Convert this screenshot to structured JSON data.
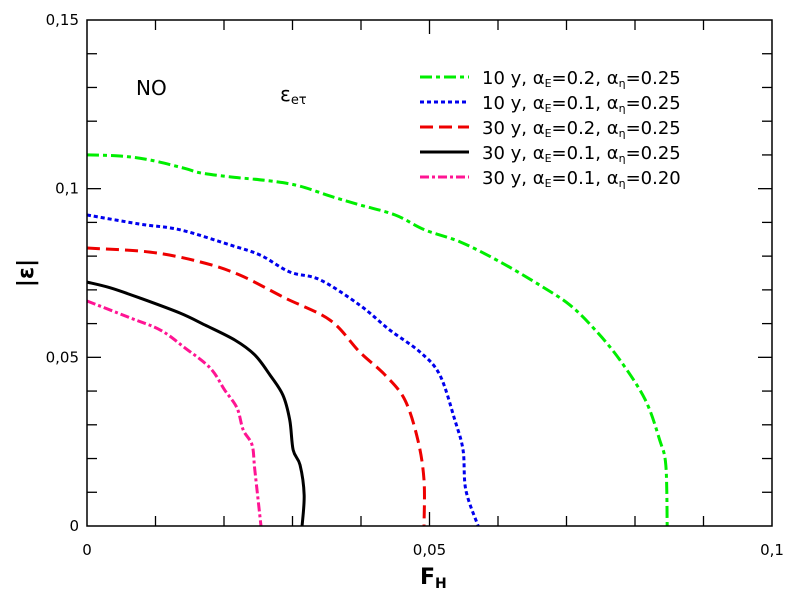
{
  "chart_data": {
    "type": "line",
    "xlabel": {
      "main": "F",
      "sub": "H"
    },
    "ylabel": "|ε|",
    "xlim": [
      0,
      0.1
    ],
    "ylim": [
      0,
      0.15
    ],
    "x_ticks": [
      {
        "value": 0,
        "label": "0"
      },
      {
        "value": 0.05,
        "label": "0,05"
      },
      {
        "value": 0.1,
        "label": "0,1"
      }
    ],
    "y_ticks": [
      {
        "value": 0,
        "label": "0"
      },
      {
        "value": 0.05,
        "label": "0,05"
      },
      {
        "value": 0.1,
        "label": "0,1"
      },
      {
        "value": 0.15,
        "label": "0,15"
      }
    ],
    "grid": false,
    "legend_position": "top-right",
    "annotations": [
      {
        "text": "NO",
        "sub": ""
      },
      {
        "text": "ε",
        "sub": "eτ"
      }
    ],
    "series": [
      {
        "label_parts": [
          "10 y, α",
          "E",
          "=0.2, α",
          "η",
          "=0.25"
        ],
        "color": "#00ee00",
        "style": "dash-dot",
        "x": [
          0,
          0.0048,
          0.0092,
          0.0143,
          0.0165,
          0.0209,
          0.0267,
          0.031,
          0.0355,
          0.0398,
          0.045,
          0.0493,
          0.0545,
          0.0603,
          0.0661,
          0.0705,
          0.0742,
          0.0778,
          0.0815,
          0.0836,
          0.0845,
          0.0847
        ],
        "y": [
          0.11,
          0.1097,
          0.1085,
          0.106,
          0.1047,
          0.1035,
          0.1023,
          0.1008,
          0.0978,
          0.0952,
          0.0922,
          0.0878,
          0.0842,
          0.0783,
          0.0714,
          0.0655,
          0.0581,
          0.0492,
          0.0374,
          0.0255,
          0.018,
          0
        ]
      },
      {
        "label_parts": [
          "10 y, α",
          "E",
          "=0.1, α",
          "η",
          "=0.25"
        ],
        "color": "#0000ee",
        "style": "dotted",
        "x": [
          0,
          0.0077,
          0.0136,
          0.0209,
          0.0253,
          0.0296,
          0.034,
          0.0398,
          0.0442,
          0.0486,
          0.0515,
          0.0537,
          0.0549,
          0.0553,
          0.0571
        ],
        "y": [
          0.0922,
          0.0895,
          0.0878,
          0.0833,
          0.0803,
          0.0753,
          0.073,
          0.0655,
          0.0581,
          0.0516,
          0.0448,
          0.0314,
          0.0225,
          0.0107,
          0
        ]
      },
      {
        "label_parts": [
          "30 y, α",
          "E",
          "=0.2, α",
          "η",
          "=0.25"
        ],
        "color": "#ee0000",
        "style": "dashed",
        "x": [
          0,
          0.0092,
          0.0165,
          0.0223,
          0.0289,
          0.0355,
          0.0398,
          0.0435,
          0.0464,
          0.0483,
          0.0492,
          0.0492
        ],
        "y": [
          0.0824,
          0.0812,
          0.0783,
          0.0744,
          0.0676,
          0.061,
          0.0516,
          0.0448,
          0.0374,
          0.0255,
          0.0136,
          0
        ]
      },
      {
        "label_parts": [
          "30 y, α",
          "E",
          "=0.1, α",
          "η",
          "=0.25"
        ],
        "color": "#000000",
        "style": "solid",
        "x": [
          0,
          0.0034,
          0.0077,
          0.0136,
          0.0172,
          0.0216,
          0.0245,
          0.0267,
          0.0286,
          0.0296,
          0.0301,
          0.0311,
          0.0317,
          0.0314
        ],
        "y": [
          0.0723,
          0.0706,
          0.0676,
          0.0631,
          0.0596,
          0.0551,
          0.0507,
          0.0448,
          0.0388,
          0.0314,
          0.0225,
          0.0181,
          0.0092,
          0
        ]
      },
      {
        "label_parts": [
          "30 y, α",
          "E",
          "=0.1, α",
          "η",
          "=0.20"
        ],
        "color": "#ff1493",
        "style": "dash-dot-dot",
        "x": [
          0,
          0.0063,
          0.0107,
          0.0143,
          0.018,
          0.0201,
          0.0219,
          0.0228,
          0.0241,
          0.0245,
          0.0254
        ],
        "y": [
          0.0667,
          0.0617,
          0.0581,
          0.0528,
          0.0468,
          0.0403,
          0.035,
          0.0285,
          0.024,
          0.0166,
          0
        ]
      }
    ]
  }
}
